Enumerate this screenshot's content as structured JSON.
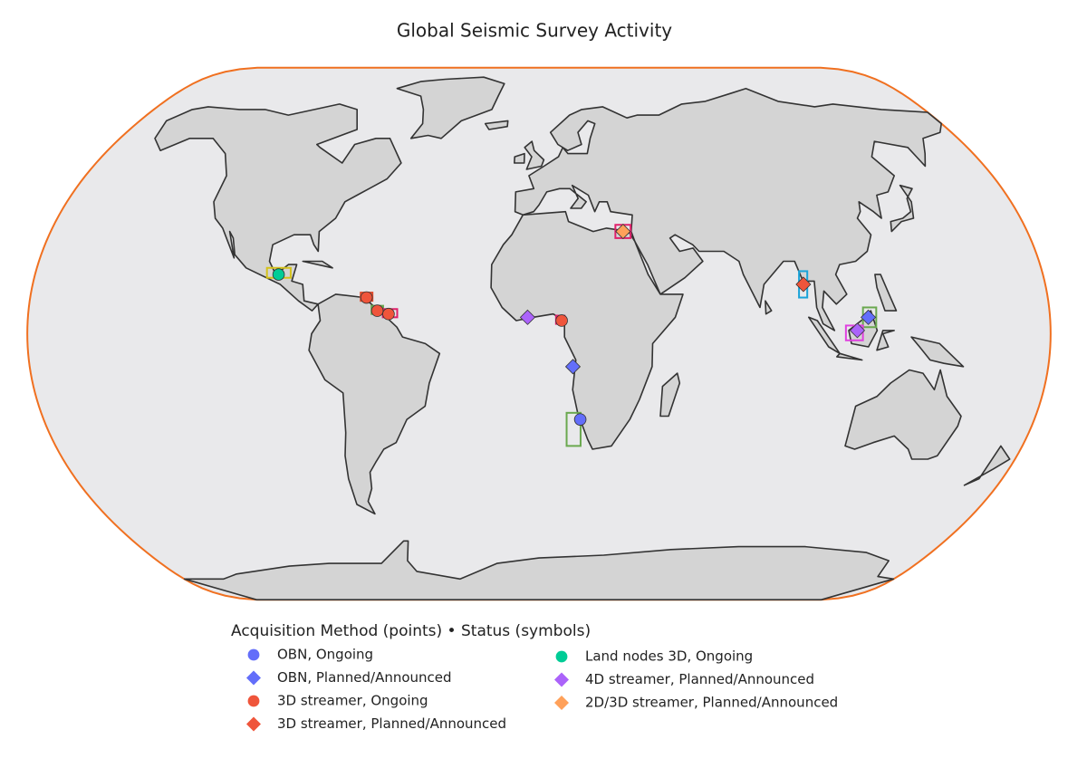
{
  "chart_data": {
    "type": "scattergeo",
    "title": "Global Seismic Survey Activity",
    "legend_title": "Acquisition Method (points) • Status (symbols)",
    "projection": "natural earth",
    "series": [
      {
        "name": "OBN, Ongoing",
        "color": "#636efa",
        "symbol": "circle",
        "lon": [
          15
        ],
        "lat": [
          -26
        ]
      },
      {
        "name": "OBN, Planned/Announced",
        "color": "#636efa",
        "symbol": "diamond",
        "lon": [
          12,
          116
        ],
        "lat": [
          -10,
          5
        ]
      },
      {
        "name": "3D streamer, Ongoing",
        "color": "#ef553b",
        "symbol": "circle",
        "lon": [
          -61,
          -57,
          -53,
          8
        ],
        "lat": [
          11,
          7,
          6,
          4
        ]
      },
      {
        "name": "3D streamer, Planned/Announced",
        "color": "#ef553b",
        "symbol": "diamond",
        "lon": [
          94
        ],
        "lat": [
          15
        ]
      },
      {
        "name": "Land nodes 3D, Ongoing",
        "color": "#00cc96",
        "symbol": "circle",
        "lon": [
          -93
        ],
        "lat": [
          18
        ]
      },
      {
        "name": "4D streamer, Planned/Announced",
        "color": "#ab63fa",
        "symbol": "diamond",
        "lon": [
          112,
          -4
        ],
        "lat": [
          1,
          5
        ]
      },
      {
        "name": "2D/3D streamer, Planned/Announced",
        "color": "#ffa15a",
        "symbol": "diamond",
        "lon": [
          31
        ],
        "lat": [
          31
        ]
      }
    ],
    "boxes": [
      {
        "color": "#e0206a",
        "lon": [
          28,
          34
        ],
        "lat": [
          29,
          33
        ]
      },
      {
        "color": "#d4c21a",
        "lon": [
          -97,
          -89
        ],
        "lat": [
          17,
          20
        ]
      },
      {
        "color": "#e04a2a",
        "lon": [
          -63,
          -59
        ],
        "lat": [
          10,
          12.5
        ]
      },
      {
        "color": "#6aa84f",
        "lon": [
          -59,
          -55
        ],
        "lat": [
          6,
          8.5
        ]
      },
      {
        "color": "#e0206a",
        "lon": [
          -55,
          -50
        ],
        "lat": [
          5,
          7.5
        ]
      },
      {
        "color": "#8e6ad8",
        "lon": [
          -5,
          -3
        ],
        "lat": [
          4,
          6
        ]
      },
      {
        "color": "#e0206a",
        "lon": [
          6,
          9
        ],
        "lat": [
          3,
          5.5
        ]
      },
      {
        "color": "#6aa84f",
        "lon": [
          10,
          15.5
        ],
        "lat": [
          -24,
          -34
        ]
      },
      {
        "color": "#1aa3d9",
        "lon": [
          92,
          96
        ],
        "lat": [
          11,
          19
        ]
      },
      {
        "color": "#6aa84f",
        "lon": [
          114,
          119
        ],
        "lat": [
          2,
          8
        ]
      },
      {
        "color": "#e040e0",
        "lon": [
          108,
          114
        ],
        "lat": [
          -2,
          2.5
        ]
      }
    ]
  }
}
